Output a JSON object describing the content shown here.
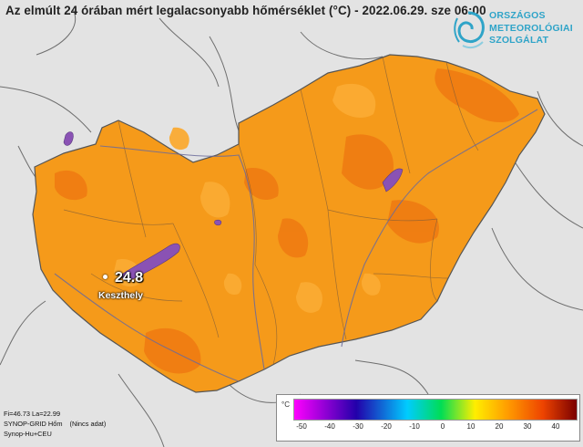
{
  "title": "Az elmúlt 24 órában mért legalacsonyabb hőmérséklet (°C) - 2022.06.29. sze 06:00",
  "logo": {
    "icon": "omsz-spiral-logo",
    "lines": [
      "ORSZÁGOS",
      "METEOROLÓGIAI",
      "SZOLGÁLAT"
    ]
  },
  "station": {
    "value": "24.8",
    "name": "Keszthely"
  },
  "info": {
    "coords": "Fi=46.73 La=22.99",
    "line2": "SYNOP-GRID Hőm",
    "nodata": "(Nincs adat)",
    "line3": "Synop-Hu+CEU"
  },
  "legend": {
    "unit": "°C",
    "ticks": [
      "-50",
      "-40",
      "-30",
      "-20",
      "-10",
      "0",
      "10",
      "20",
      "30",
      "40"
    ],
    "colors": {
      "min": "#ff00ff",
      "cold": "#2200aa",
      "cool": "#00ccff",
      "zero": "#00dd55",
      "mild": "#ffee00",
      "warm": "#ff9900",
      "hot": "#ee4400",
      "max": "#7a0000"
    }
  },
  "colors": {
    "background": "#e3e3e3",
    "land": "#f59a1a",
    "warm_patch": "#ef7b12",
    "cool_patch": "#fba82c",
    "lake": "#8a52b4",
    "border": "#6e6e6e"
  }
}
